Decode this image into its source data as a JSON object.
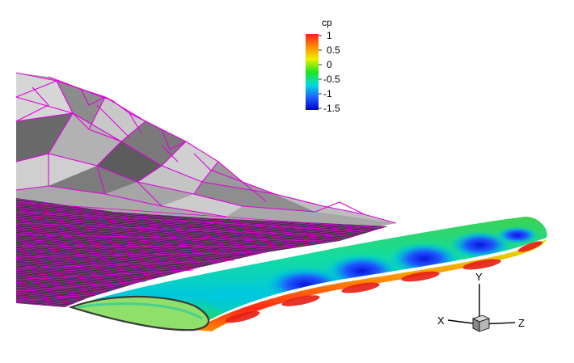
{
  "legend": {
    "title": "cp",
    "ticks": [
      "1",
      "0.5",
      "0",
      "-0.5",
      "-1",
      "-1.5"
    ],
    "colors": [
      "#ff1e1e",
      "#ff8c00",
      "#f0f000",
      "#1ee61e",
      "#00dcdc",
      "#1e64ff",
      "#0000d2"
    ]
  },
  "axes": {
    "x_label": "X",
    "y_label": "Y",
    "z_label": "Z"
  },
  "mesh": {
    "edge_color": "#e000e0",
    "surface_color": "#b8b8b8"
  }
}
